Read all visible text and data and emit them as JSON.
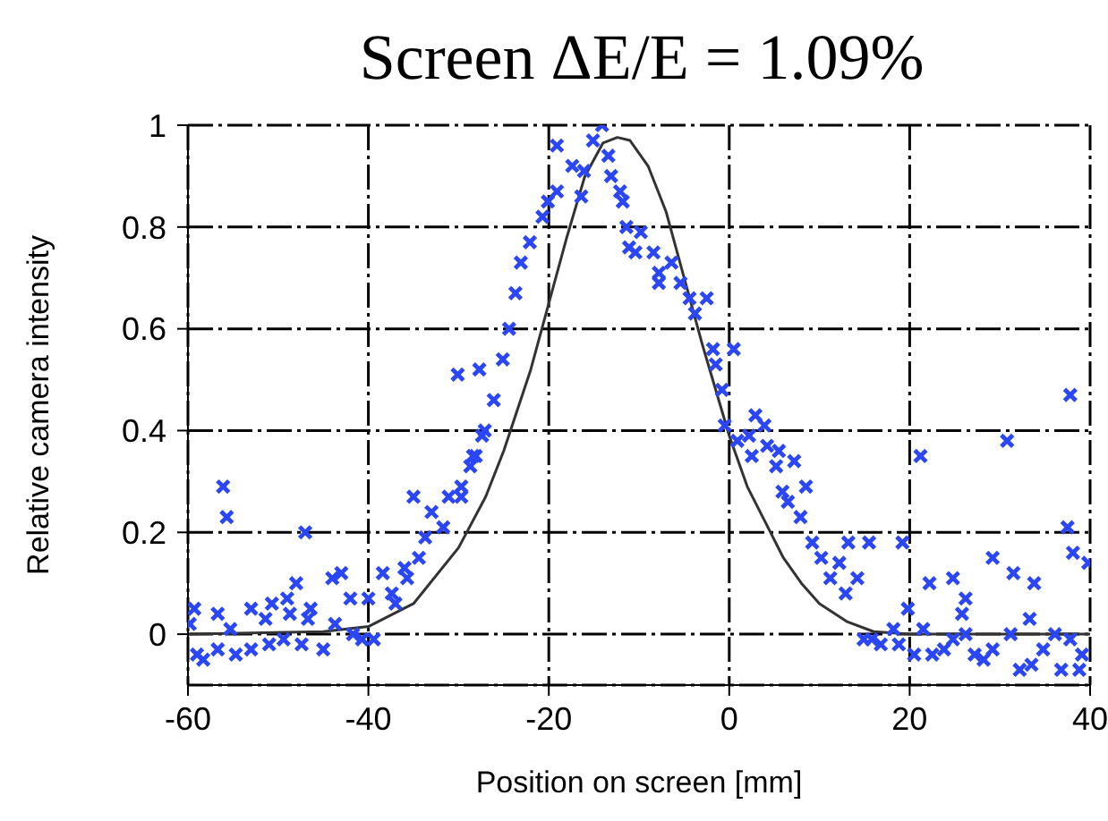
{
  "chart_data": {
    "type": "scatter",
    "title": "Screen ΔE/E = 1.09%",
    "xlabel": "Position on screen [mm]",
    "ylabel": "Relative camera intensity",
    "xlim": [
      -60,
      40
    ],
    "xticks": [
      -60,
      -40,
      -20,
      0,
      20,
      40
    ],
    "ylim": [
      -0.1,
      1
    ],
    "yticks": [
      0,
      0.2,
      0.4,
      0.6,
      0.8,
      1
    ],
    "grid": true,
    "series": [
      {
        "marker": "cross",
        "color": "#2a46f5",
        "x": [
          -59.8,
          -59.3,
          -59,
          -58.3,
          -56.7,
          -56.7,
          -55.3,
          -54.7,
          -53,
          -53,
          -51.4,
          -50.7,
          -51,
          -49,
          -48.7,
          -49.4,
          -48,
          -47.4,
          -46.4,
          -46.7,
          -45,
          -44,
          -43,
          -43.7,
          -42,
          -41.7,
          -40,
          -40.7,
          -39.4,
          -38.4,
          -37.4,
          -37,
          -36,
          -35.7,
          -34.4,
          -33.7,
          -33,
          -31.7,
          -31.1,
          -29.7,
          -28.7,
          -28.1,
          -27.4,
          -56.1,
          -55.7,
          -47,
          -35,
          -30.1,
          -27.7,
          -25.1,
          -26.1,
          -27.1,
          -28.4,
          -29.7,
          -24.4,
          -23.7,
          -23.1,
          -22.1,
          -20.7,
          -20.1,
          -19.1,
          -19.1,
          -17.4,
          -16.4,
          -16.1,
          -15.1,
          -14.1,
          -13.4,
          -13.1,
          -12.1,
          -11.8,
          -11.4,
          -9.8,
          -11.1,
          -10.4,
          -8.4,
          -6.4,
          -7.8,
          -5.4,
          -7.8,
          -4.4,
          -2.5,
          -3.8,
          -1.8,
          0.5,
          -1.5,
          -0.8,
          -0.5,
          0.9,
          2.9,
          2.2,
          3.9,
          2.5,
          4.2,
          5.2,
          5.9,
          7.2,
          6.5,
          7.9,
          5.5,
          8.5,
          9.2,
          10.2,
          11.2,
          12.9,
          13.2,
          15.5,
          19.2,
          14.2,
          12.2,
          19.8,
          21.2,
          22.2,
          24.8,
          26.2,
          25.8,
          29.2,
          30.8,
          31.5,
          33.8,
          33.3,
          37.5,
          37.8,
          38.1,
          39.8,
          14.9,
          15.8,
          16.8,
          18.2,
          18.8,
          20.5,
          21.5,
          22.5,
          23.8,
          24.8,
          26.2,
          27.2,
          28.2,
          29.2,
          31.2,
          32.2,
          33.5,
          34.8,
          36.1,
          36.8,
          37.8,
          38.8,
          39.1
        ],
        "values": [
          0.02,
          0.05,
          -0.04,
          -0.05,
          0.04,
          -0.03,
          0.01,
          -0.04,
          0.05,
          -0.03,
          0.03,
          0.06,
          -0.02,
          0.07,
          0.04,
          -0.01,
          0.1,
          -0.02,
          0.05,
          0.03,
          -0.03,
          0.11,
          0.12,
          0.02,
          0.07,
          0,
          0.07,
          -0.01,
          -0.01,
          0.12,
          0.08,
          0.06,
          0.13,
          0.11,
          0.15,
          0.19,
          0.24,
          0.21,
          0.27,
          0.29,
          0.33,
          0.35,
          0.39,
          0.29,
          0.23,
          0.2,
          0.27,
          0.51,
          0.52,
          0.54,
          0.46,
          0.4,
          0.35,
          0.27,
          0.6,
          0.67,
          0.73,
          0.77,
          0.82,
          0.85,
          0.87,
          0.96,
          0.92,
          0.86,
          0.91,
          0.97,
          1,
          0.94,
          0.9,
          0.87,
          0.85,
          0.8,
          0.79,
          0.76,
          0.75,
          0.75,
          0.73,
          0.71,
          0.69,
          0.69,
          0.66,
          0.66,
          0.63,
          0.56,
          0.56,
          0.53,
          0.48,
          0.41,
          0.38,
          0.43,
          0.39,
          0.41,
          0.35,
          0.37,
          0.33,
          0.28,
          0.34,
          0.26,
          0.23,
          0.36,
          0.29,
          0.18,
          0.15,
          0.11,
          0.08,
          0.18,
          0.18,
          0.18,
          0.11,
          0.14,
          0.05,
          0.35,
          0.1,
          0.11,
          0.07,
          0.04,
          0.15,
          0.38,
          0.12,
          0.1,
          0.03,
          0.21,
          0.47,
          0.16,
          0.14,
          -0.01,
          -0.01,
          -0.02,
          0.01,
          -0.02,
          -0.04,
          0.01,
          -0.04,
          -0.03,
          -0.01,
          0,
          -0.04,
          -0.05,
          -0.03,
          0,
          -0.07,
          -0.06,
          -0.03,
          0,
          -0.07,
          -0.01,
          -0.07,
          -0.04
        ]
      },
      {
        "type": "line",
        "marker": "none",
        "color": "#333333",
        "x": [
          -60,
          -45,
          -40,
          -35,
          -30,
          -27,
          -25,
          -22,
          -20,
          -18,
          -16,
          -14,
          -12.4,
          -11,
          -9,
          -7,
          -5,
          -3,
          -1,
          0,
          2,
          4,
          6,
          8,
          10,
          13,
          16,
          20,
          40
        ],
        "values": [
          0,
          0.005,
          0.015,
          0.06,
          0.17,
          0.27,
          0.36,
          0.52,
          0.65,
          0.78,
          0.9,
          0.965,
          0.976,
          0.97,
          0.92,
          0.83,
          0.7,
          0.57,
          0.45,
          0.39,
          0.29,
          0.22,
          0.15,
          0.1,
          0.06,
          0.025,
          0.005,
          0,
          0
        ]
      }
    ]
  }
}
